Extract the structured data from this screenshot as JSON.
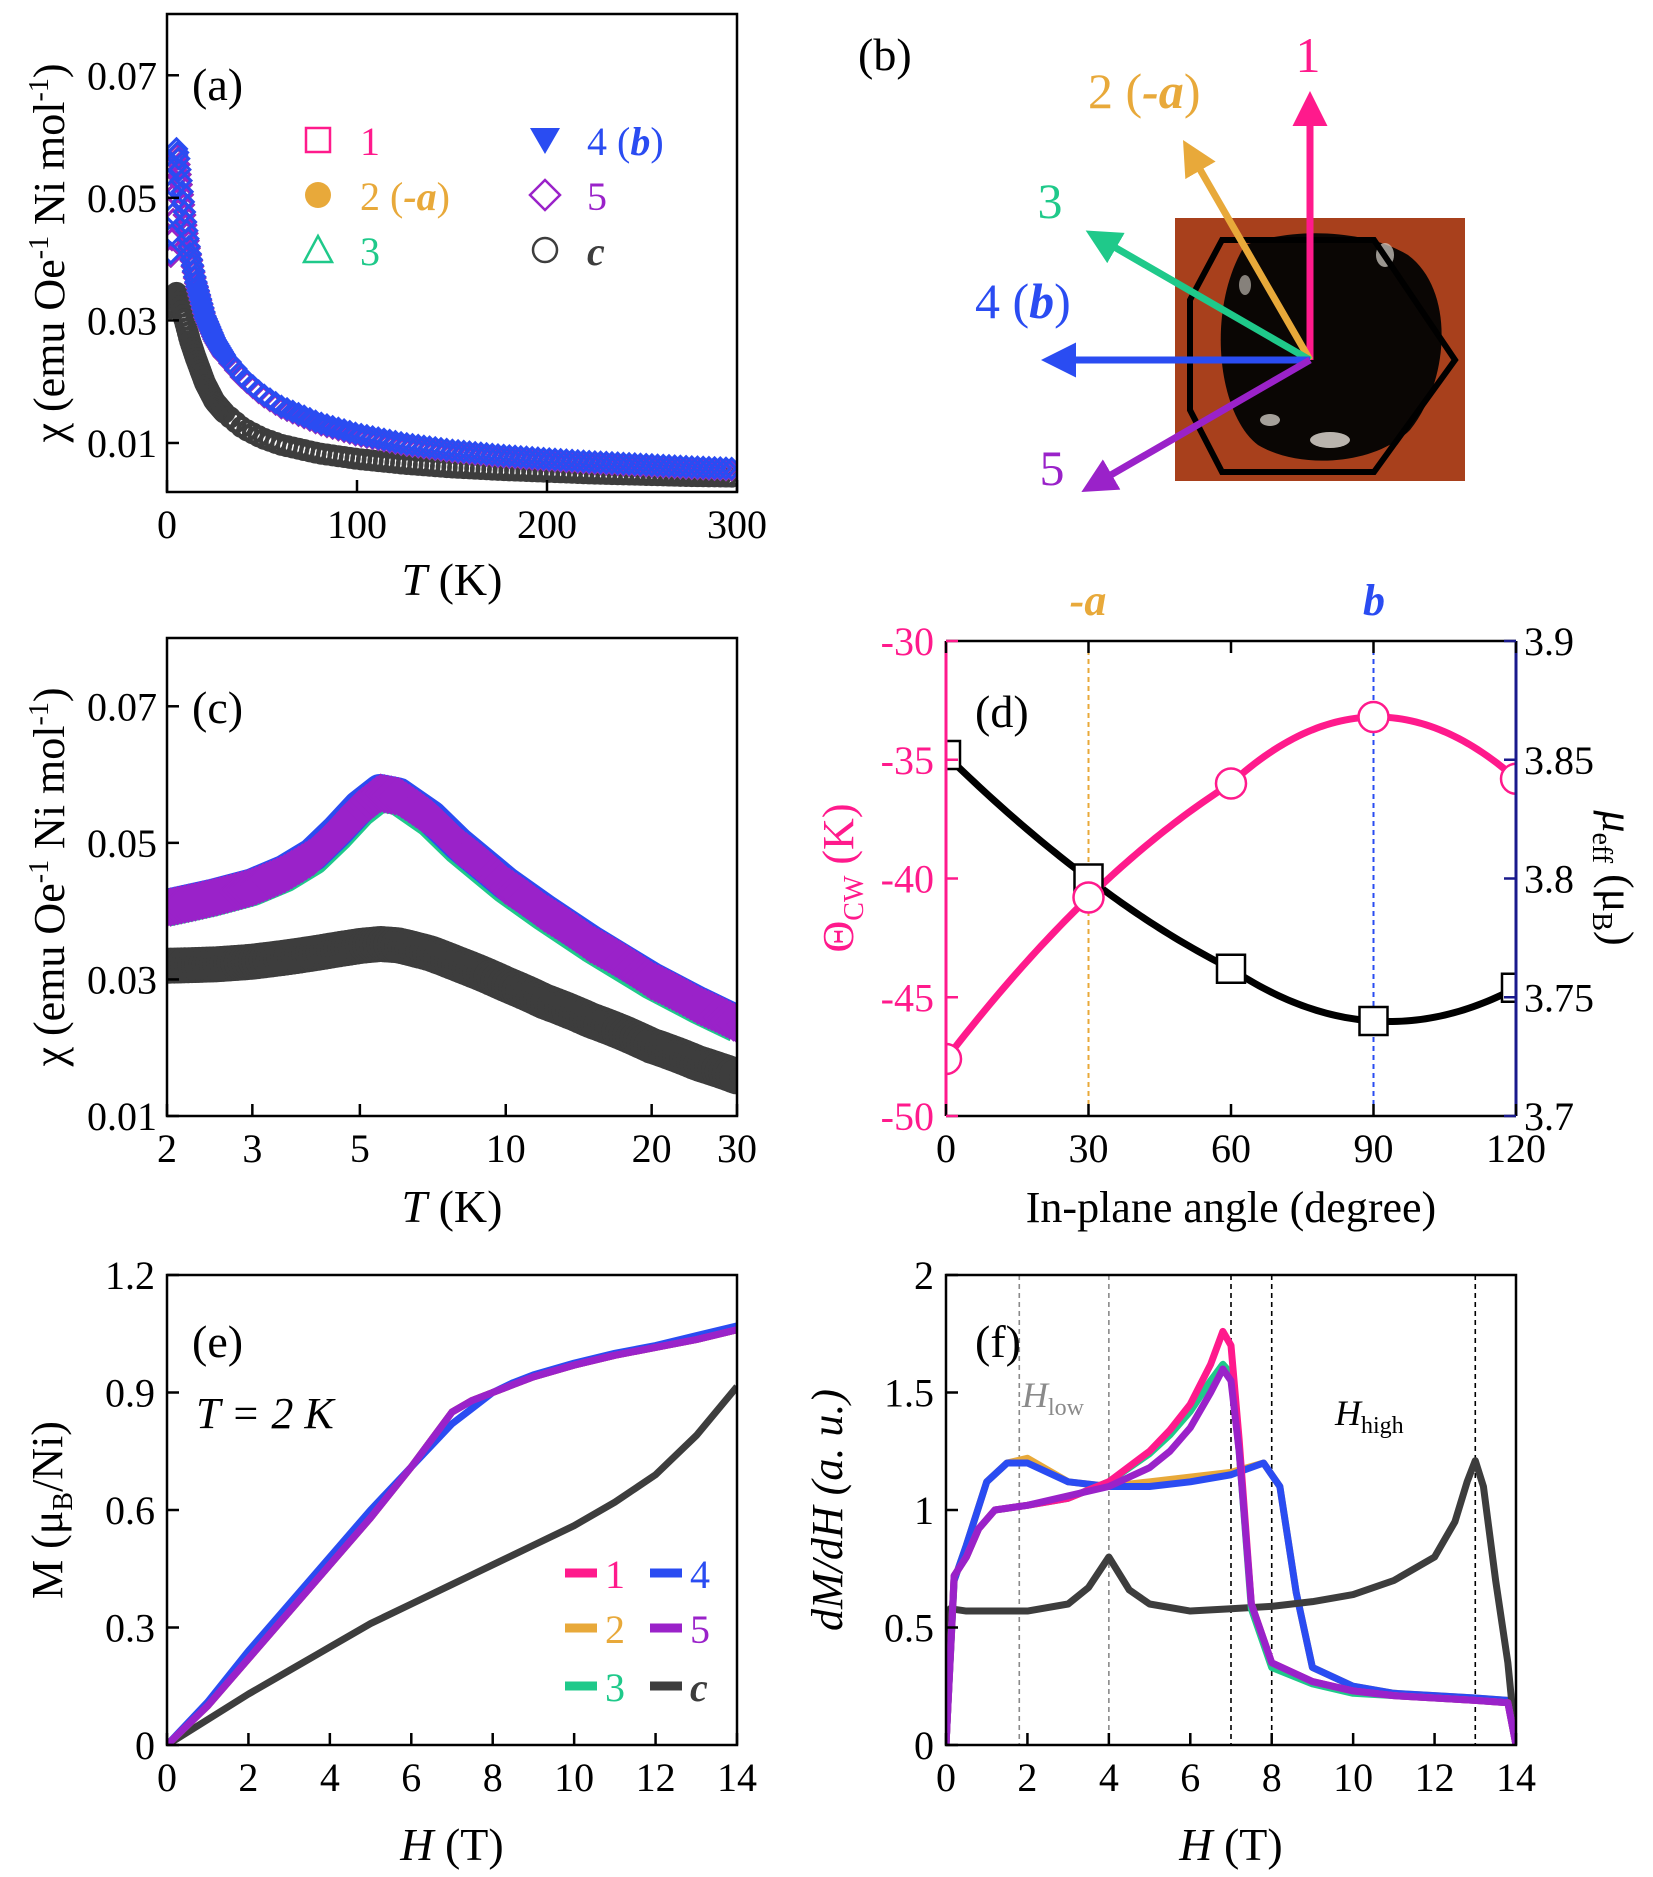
{
  "colors": {
    "s1": "#ff1a8c",
    "s2": "#e8a93a",
    "s3": "#1fc98a",
    "s4": "#2a4cf2",
    "s5": "#9a22c9",
    "c": "#3d3d3d",
    "axis_right": "#1a1a8c"
  },
  "photo_colors": {
    "background": "#a8401c",
    "crystal": "#0a0604"
  },
  "panels": {
    "a": {
      "label": "(a)"
    },
    "b": {
      "label": "(b)",
      "arrows": [
        {
          "id": "1",
          "text": "1",
          "color": "#ff1a8c",
          "angle_deg": 90
        },
        {
          "id": "2",
          "text": "2 (-a)",
          "color": "#e8a93a",
          "angle_deg": 120
        },
        {
          "id": "3",
          "text": "3",
          "color": "#1fc98a",
          "angle_deg": 150
        },
        {
          "id": "4",
          "text": "4 (b)",
          "color": "#2a4cf2",
          "angle_deg": 180
        },
        {
          "id": "5",
          "text": "5",
          "color": "#9a22c9",
          "angle_deg": 210
        }
      ]
    },
    "c": {
      "label": "(c)"
    },
    "d": {
      "label": "(d)",
      "top_left": "-a",
      "top_right": "b"
    },
    "e": {
      "label": "(e)",
      "annotation": "T = 2 K"
    },
    "f": {
      "label": "(f)",
      "h_low": "H",
      "h_low_sub": "low",
      "h_high": "H",
      "h_high_sub": "high"
    }
  },
  "legend_a": [
    {
      "num": "1",
      "ital": "",
      "rest": "",
      "marker": "open-square",
      "color": "#ff1a8c"
    },
    {
      "num": "2 (",
      "ital": "-a",
      "rest": ")",
      "marker": "filled-circle",
      "color": "#e8a93a"
    },
    {
      "num": "3",
      "ital": "",
      "rest": "",
      "marker": "open-triangle",
      "color": "#1fc98a"
    },
    {
      "num": "4 (",
      "ital": "b",
      "rest": ")",
      "marker": "filled-triangle-down",
      "color": "#2a4cf2"
    },
    {
      "num": "5",
      "ital": "",
      "rest": "",
      "marker": "open-diamond",
      "color": "#9a22c9"
    },
    {
      "num": "",
      "ital": "c",
      "rest": "",
      "marker": "open-circle",
      "color": "#3d3d3d"
    }
  ],
  "legend_e": [
    {
      "text": "1",
      "color": "#ff1a8c",
      "italic": false
    },
    {
      "text": "4",
      "color": "#2a4cf2",
      "italic": false
    },
    {
      "text": "2",
      "color": "#e8a93a",
      "italic": false
    },
    {
      "text": "5",
      "color": "#9a22c9",
      "italic": false
    },
    {
      "text": "3",
      "color": "#1fc98a",
      "italic": false
    },
    {
      "text": "c",
      "color": "#3d3d3d",
      "italic": true
    }
  ],
  "axes": {
    "chi_ylabel": {
      "pre": "χ (emu Oe",
      "sup1": "-1",
      "mid": " Ni mol",
      "sup2": "-1",
      "post": ")"
    },
    "T_xlabel": {
      "ital": "T",
      "rest": " (K)"
    },
    "theta_ylabel": {
      "main": "Θ",
      "sub": "CW",
      "rest": " (K)"
    },
    "mueff_ylabel": {
      "main": "μ",
      "sub": "eff",
      "rest": " (μ",
      "sub2": "B",
      "end": ")"
    },
    "angle_xlabel": "In-plane angle (degree)",
    "M_ylabel": {
      "main": "M (μ",
      "sub": "B",
      "rest": "/Ni)"
    },
    "H_xlabel": {
      "ital": "H",
      "rest": " (T)"
    },
    "dMdH_ylabel": "dM/dH (a. u.)"
  },
  "chart_data": [
    {
      "panel": "a",
      "type": "scatter",
      "xlabel": "T (K)",
      "ylabel": "χ (emu Oe-1 Ni mol-1)",
      "xlim": [
        0,
        300
      ],
      "ylim": [
        0.002,
        0.08
      ],
      "xticks": [
        0,
        100,
        200,
        300
      ],
      "yticks": [
        0.01,
        0.03,
        0.05,
        0.07
      ],
      "x": [
        2,
        3,
        4,
        5,
        6,
        8,
        10,
        12,
        15,
        20,
        25,
        30,
        40,
        50,
        60,
        80,
        100,
        125,
        150,
        175,
        200,
        225,
        250,
        275,
        300
      ],
      "series": [
        {
          "name": "1",
          "values": [
            0.0405,
            0.045,
            0.052,
            0.057,
            0.056,
            0.0505,
            0.045,
            0.041,
            0.0363,
            0.0305,
            0.0268,
            0.0242,
            0.0205,
            0.0178,
            0.0158,
            0.0131,
            0.0113,
            0.0097,
            0.0086,
            0.0078,
            0.0072,
            0.0067,
            0.0063,
            0.0059,
            0.0056
          ]
        },
        {
          "name": "2 (-a)",
          "values": [
            0.0405,
            0.045,
            0.052,
            0.057,
            0.056,
            0.0505,
            0.045,
            0.041,
            0.0363,
            0.0305,
            0.0268,
            0.0242,
            0.0205,
            0.0178,
            0.0158,
            0.0131,
            0.0113,
            0.0097,
            0.0086,
            0.0078,
            0.0072,
            0.0067,
            0.0063,
            0.0059,
            0.0056
          ]
        },
        {
          "name": "3",
          "values": [
            0.0405,
            0.045,
            0.052,
            0.057,
            0.056,
            0.0505,
            0.045,
            0.041,
            0.0363,
            0.0305,
            0.0268,
            0.0242,
            0.0205,
            0.0178,
            0.0158,
            0.0131,
            0.0113,
            0.0097,
            0.0086,
            0.0078,
            0.0072,
            0.0067,
            0.0063,
            0.0059,
            0.0056
          ]
        },
        {
          "name": "4 (b)",
          "values": [
            0.041,
            0.046,
            0.053,
            0.058,
            0.057,
            0.051,
            0.0455,
            0.0412,
            0.0365,
            0.0307,
            0.027,
            0.0244,
            0.0207,
            0.018,
            0.016,
            0.0133,
            0.0115,
            0.0099,
            0.0088,
            0.008,
            0.0074,
            0.0069,
            0.0065,
            0.0061,
            0.0058
          ]
        },
        {
          "name": "5",
          "values": [
            0.0405,
            0.045,
            0.052,
            0.057,
            0.056,
            0.0505,
            0.045,
            0.041,
            0.0363,
            0.0305,
            0.0268,
            0.0242,
            0.0205,
            0.0178,
            0.0158,
            0.0131,
            0.0113,
            0.0097,
            0.0086,
            0.0078,
            0.0072,
            0.0067,
            0.0063,
            0.0059,
            0.0056
          ]
        },
        {
          "name": "c",
          "values": [
            0.032,
            0.0325,
            0.0335,
            0.0345,
            0.034,
            0.0315,
            0.0292,
            0.0268,
            0.024,
            0.0198,
            0.0168,
            0.015,
            0.0124,
            0.0108,
            0.0097,
            0.0083,
            0.0074,
            0.0066,
            0.006,
            0.0056,
            0.0053,
            0.005,
            0.0048,
            0.0046,
            0.0045
          ]
        }
      ]
    },
    {
      "panel": "c",
      "type": "scatter",
      "xlabel": "T (K)",
      "ylabel": "χ (emu Oe-1 Ni mol-1)",
      "xscale": "log",
      "xlim": [
        2,
        30
      ],
      "ylim": [
        0.01,
        0.08
      ],
      "xticks": [
        2,
        3,
        5,
        10,
        20,
        30
      ],
      "yticks": [
        0.01,
        0.03,
        0.05,
        0.07
      ],
      "x": [
        2,
        2.5,
        3,
        3.5,
        4,
        4.5,
        5,
        5.5,
        6,
        7,
        8,
        10,
        12,
        15,
        20,
        25,
        30
      ],
      "series": [
        {
          "name": "1-5",
          "values": [
            0.0405,
            0.042,
            0.0435,
            0.0455,
            0.048,
            0.0515,
            0.055,
            0.0573,
            0.0568,
            0.0535,
            0.0495,
            0.0438,
            0.0398,
            0.0352,
            0.0298,
            0.0262,
            0.0235
          ]
        },
        {
          "name": "c",
          "values": [
            0.032,
            0.0322,
            0.0326,
            0.0332,
            0.0338,
            0.0344,
            0.0349,
            0.0352,
            0.035,
            0.0338,
            0.0322,
            0.0293,
            0.0268,
            0.024,
            0.0203,
            0.0177,
            0.0158
          ]
        }
      ]
    },
    {
      "panel": "d",
      "type": "line",
      "xlabel": "In-plane angle (degree)",
      "ylabel": "ΘCW (K)",
      "ylabel_right": "μeff (μB)",
      "xlim": [
        0,
        120
      ],
      "ylim": [
        -50,
        -30
      ],
      "ylim_right": [
        3.7,
        3.9
      ],
      "xticks": [
        0,
        30,
        60,
        90,
        120
      ],
      "yticks": [
        -50,
        -45,
        -40,
        -35,
        -30
      ],
      "yticks_right": [
        3.7,
        3.75,
        3.8,
        3.85,
        3.9
      ],
      "x": [
        0,
        30,
        60,
        90,
        120
      ],
      "series": [
        {
          "name": "ΘCW",
          "values": [
            -47.6,
            -40.8,
            -36.0,
            -33.2,
            -35.8
          ]
        },
        {
          "name": "μeff",
          "values": [
            3.852,
            3.8,
            3.762,
            3.74,
            3.754
          ]
        }
      ],
      "vlines": [
        30,
        90
      ]
    },
    {
      "panel": "e",
      "type": "line",
      "xlabel": "H (T)",
      "ylabel": "M (μB/Ni)",
      "xlim": [
        0,
        14
      ],
      "ylim": [
        0,
        1.2
      ],
      "xticks": [
        0,
        2,
        4,
        6,
        8,
        10,
        12,
        14
      ],
      "yticks": [
        0,
        0.3,
        0.6,
        0.9,
        1.2
      ],
      "x": [
        0,
        1,
        2,
        3,
        4,
        5,
        6,
        7,
        7.5,
        8,
        8.5,
        9,
        10,
        11,
        12,
        13,
        14
      ],
      "series": [
        {
          "name": "1",
          "values": [
            0,
            0.1,
            0.22,
            0.34,
            0.46,
            0.58,
            0.71,
            0.85,
            0.88,
            0.9,
            0.92,
            0.94,
            0.97,
            0.995,
            1.015,
            1.035,
            1.06
          ]
        },
        {
          "name": "2",
          "values": [
            0,
            0.1,
            0.22,
            0.34,
            0.46,
            0.58,
            0.71,
            0.85,
            0.88,
            0.9,
            0.92,
            0.94,
            0.97,
            0.995,
            1.015,
            1.035,
            1.06
          ]
        },
        {
          "name": "3",
          "values": [
            0,
            0.1,
            0.22,
            0.34,
            0.46,
            0.58,
            0.71,
            0.85,
            0.88,
            0.9,
            0.92,
            0.94,
            0.97,
            0.995,
            1.015,
            1.035,
            1.06
          ]
        },
        {
          "name": "4",
          "values": [
            0,
            0.11,
            0.24,
            0.36,
            0.48,
            0.6,
            0.71,
            0.82,
            0.86,
            0.9,
            0.925,
            0.945,
            0.975,
            1.0,
            1.02,
            1.045,
            1.07
          ]
        },
        {
          "name": "5",
          "values": [
            0,
            0.1,
            0.22,
            0.34,
            0.46,
            0.58,
            0.71,
            0.85,
            0.88,
            0.9,
            0.92,
            0.94,
            0.97,
            0.995,
            1.015,
            1.035,
            1.06
          ]
        },
        {
          "name": "c",
          "values": [
            0,
            0.065,
            0.13,
            0.19,
            0.25,
            0.31,
            0.36,
            0.41,
            0.435,
            0.46,
            0.485,
            0.51,
            0.56,
            0.62,
            0.69,
            0.79,
            0.915
          ]
        }
      ]
    },
    {
      "panel": "f",
      "type": "line",
      "xlabel": "H (T)",
      "ylabel": "dM/dH (a. u.)",
      "xlim": [
        0,
        14
      ],
      "ylim": [
        0,
        2
      ],
      "xticks": [
        0,
        2,
        4,
        6,
        8,
        10,
        12,
        14
      ],
      "yticks": [
        0,
        0.5,
        1,
        1.5,
        2
      ],
      "vlines": [
        1.8,
        4,
        7,
        8,
        13
      ],
      "series": [
        {
          "name": "1",
          "x": [
            0,
            0.2,
            0.5,
            0.8,
            1.2,
            2,
            3,
            4,
            5,
            5.5,
            6,
            6.5,
            6.8,
            7,
            7.2,
            7.5,
            8,
            9,
            10,
            11,
            12,
            13,
            13.8,
            14
          ],
          "values": [
            0,
            0.72,
            0.8,
            0.92,
            1.0,
            1.02,
            1.05,
            1.12,
            1.25,
            1.34,
            1.45,
            1.62,
            1.76,
            1.7,
            1.3,
            0.6,
            0.35,
            0.27,
            0.23,
            0.21,
            0.2,
            0.19,
            0.18,
            0
          ]
        },
        {
          "name": "2",
          "x": [
            0,
            0.2,
            0.5,
            1,
            1.5,
            2,
            3,
            4,
            5,
            6,
            7,
            7.8,
            8.2,
            8.6,
            9,
            10,
            11,
            12,
            13,
            13.8,
            14
          ],
          "values": [
            0,
            0.7,
            0.85,
            1.12,
            1.2,
            1.22,
            1.12,
            1.1,
            1.12,
            1.14,
            1.16,
            1.2,
            1.1,
            0.65,
            0.33,
            0.25,
            0.22,
            0.21,
            0.2,
            0.19,
            0
          ]
        },
        {
          "name": "3",
          "x": [
            0,
            0.2,
            0.5,
            0.8,
            1.2,
            2,
            3,
            4,
            5,
            5.5,
            6,
            6.5,
            6.8,
            7,
            7.2,
            7.5,
            8,
            9,
            10,
            11,
            12,
            13,
            13.8,
            14
          ],
          "values": [
            0,
            0.72,
            0.8,
            0.92,
            1.0,
            1.02,
            1.05,
            1.12,
            1.24,
            1.32,
            1.42,
            1.55,
            1.62,
            1.58,
            1.25,
            0.58,
            0.33,
            0.26,
            0.22,
            0.21,
            0.2,
            0.19,
            0.18,
            0
          ]
        },
        {
          "name": "4",
          "x": [
            0,
            0.2,
            0.5,
            1,
            1.5,
            2,
            3,
            4,
            5,
            6,
            7,
            7.8,
            8.2,
            8.6,
            9,
            10,
            11,
            12,
            13,
            13.8,
            14
          ],
          "values": [
            0,
            0.7,
            0.85,
            1.12,
            1.2,
            1.2,
            1.12,
            1.1,
            1.1,
            1.12,
            1.15,
            1.2,
            1.1,
            0.65,
            0.33,
            0.25,
            0.22,
            0.21,
            0.2,
            0.19,
            0
          ]
        },
        {
          "name": "5",
          "x": [
            0,
            0.2,
            0.5,
            0.8,
            1.2,
            2,
            3,
            4,
            5,
            5.5,
            6,
            6.5,
            6.8,
            7,
            7.2,
            7.5,
            8,
            9,
            10,
            11,
            12,
            13,
            13.8,
            14
          ],
          "values": [
            0,
            0.72,
            0.8,
            0.92,
            1.0,
            1.02,
            1.06,
            1.1,
            1.18,
            1.25,
            1.35,
            1.5,
            1.6,
            1.55,
            1.25,
            0.6,
            0.35,
            0.27,
            0.23,
            0.21,
            0.2,
            0.19,
            0.18,
            0
          ]
        },
        {
          "name": "c",
          "x": [
            0,
            0.1,
            0.5,
            1,
            2,
            3,
            3.5,
            4,
            4.5,
            5,
            6,
            7,
            8,
            9,
            10,
            11,
            12,
            12.5,
            12.8,
            13,
            13.2,
            13.5,
            13.8,
            14
          ],
          "values": [
            0,
            0.58,
            0.57,
            0.57,
            0.57,
            0.6,
            0.67,
            0.8,
            0.66,
            0.6,
            0.57,
            0.58,
            0.59,
            0.61,
            0.64,
            0.7,
            0.8,
            0.95,
            1.12,
            1.21,
            1.1,
            0.7,
            0.35,
            0
          ]
        }
      ]
    }
  ]
}
